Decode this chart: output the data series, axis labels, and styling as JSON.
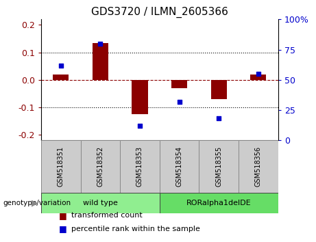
{
  "title": "GDS3720 / ILMN_2605366",
  "categories": [
    "GSM518351",
    "GSM518352",
    "GSM518353",
    "GSM518354",
    "GSM518355",
    "GSM518356"
  ],
  "bar_values": [
    0.02,
    0.135,
    -0.125,
    -0.03,
    -0.07,
    0.02
  ],
  "percentile_values": [
    62,
    80,
    12,
    32,
    18,
    55
  ],
  "bar_color": "#8B0000",
  "scatter_color": "#0000CC",
  "left_ylim": [
    -0.22,
    0.22
  ],
  "right_ylim": [
    0,
    100
  ],
  "left_yticks": [
    -0.2,
    -0.1,
    0.0,
    0.1,
    0.2
  ],
  "right_yticks": [
    0,
    25,
    50,
    75,
    100
  ],
  "right_yticklabels": [
    "0",
    "25",
    "50",
    "75",
    "100%"
  ],
  "hline_y": 0.0,
  "dotted_lines": [
    -0.1,
    0.1
  ],
  "groups": [
    {
      "label": "wild type",
      "indices": [
        0,
        1,
        2
      ],
      "color": "#90EE90"
    },
    {
      "label": "RORalpha1delDE",
      "indices": [
        3,
        4,
        5
      ],
      "color": "#66DD66"
    }
  ],
  "group_label_left": "genotype/variation",
  "legend_items": [
    {
      "color": "#8B0000",
      "label": "transformed count"
    },
    {
      "color": "#0000CC",
      "label": "percentile rank within the sample"
    }
  ],
  "bar_width": 0.4,
  "fig_width": 4.61,
  "fig_height": 3.54,
  "dpi": 100
}
